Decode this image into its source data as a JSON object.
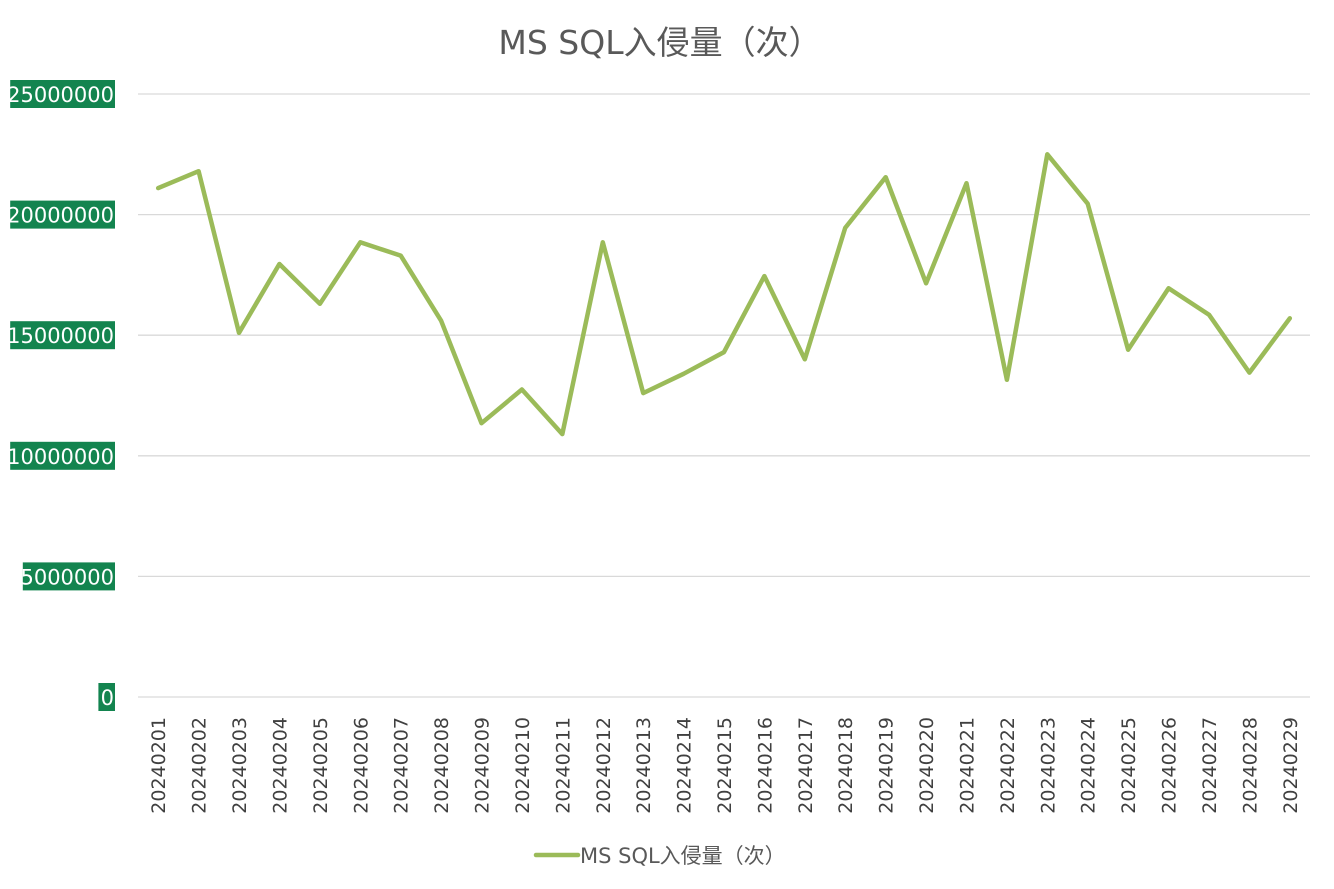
{
  "chart_data": {
    "type": "line",
    "title": "MS SQL入侵量（次）",
    "xlabel": "",
    "ylabel": "",
    "ylim": [
      0,
      25000000
    ],
    "yticks": [
      0,
      5000000,
      10000000,
      15000000,
      20000000,
      25000000
    ],
    "grid": true,
    "legend": "bottom",
    "categories": [
      "20240201",
      "20240202",
      "20240203",
      "20240204",
      "20240205",
      "20240206",
      "20240207",
      "20240208",
      "20240209",
      "20240210",
      "20240211",
      "20240212",
      "20240213",
      "20240214",
      "20240215",
      "20240216",
      "20240217",
      "20240218",
      "20240219",
      "20240220",
      "20240221",
      "20240222",
      "20240223",
      "20240224",
      "20240225",
      "20240226",
      "20240227",
      "20240228",
      "20240229"
    ],
    "series": [
      {
        "name": "MS SQL入侵量（次）",
        "color": "#9bbb59",
        "values": [
          21100000,
          21800000,
          15100000,
          17950000,
          16300000,
          18850000,
          18300000,
          15600000,
          11350000,
          12750000,
          10900000,
          18850000,
          12600000,
          13400000,
          14300000,
          17450000,
          14000000,
          19450000,
          21550000,
          17150000,
          21300000,
          13150000,
          22500000,
          20450000,
          14400000,
          16950000,
          15850000,
          13450000,
          15700000
        ]
      }
    ]
  }
}
